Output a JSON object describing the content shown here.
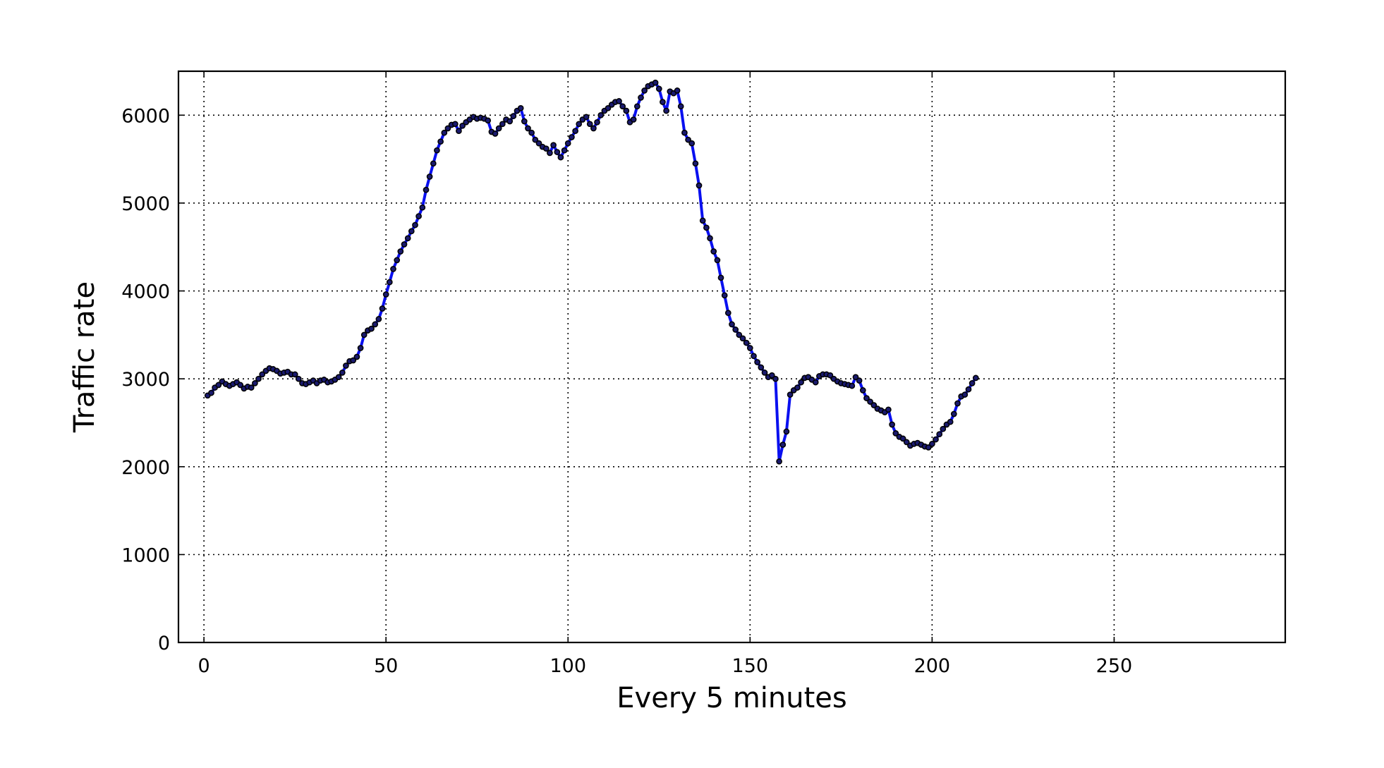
{
  "chart_data": {
    "type": "line",
    "title": "",
    "xlabel": "Every 5 minutes",
    "ylabel": "Traffic rate",
    "xlim": [
      -7,
      297
    ],
    "ylim": [
      0,
      6500
    ],
    "xticks": [
      0,
      50,
      100,
      150,
      200,
      250
    ],
    "yticks": [
      0,
      1000,
      2000,
      3000,
      4000,
      5000,
      6000
    ],
    "grid": true,
    "colors": {
      "line": "#0a10f0",
      "marker": "#1a1a6e"
    },
    "x_step": 1,
    "x_start": 1,
    "values": [
      2810,
      2840,
      2900,
      2930,
      2970,
      2940,
      2920,
      2940,
      2960,
      2930,
      2890,
      2910,
      2900,
      2950,
      3000,
      3050,
      3090,
      3120,
      3110,
      3090,
      3060,
      3070,
      3080,
      3050,
      3050,
      3000,
      2950,
      2940,
      2960,
      2980,
      2950,
      2980,
      2990,
      2960,
      2970,
      2990,
      3020,
      3070,
      3150,
      3200,
      3210,
      3250,
      3350,
      3500,
      3550,
      3570,
      3620,
      3680,
      3800,
      3960,
      4100,
      4250,
      4350,
      4450,
      4530,
      4600,
      4680,
      4750,
      4850,
      4950,
      5150,
      5300,
      5450,
      5600,
      5700,
      5800,
      5850,
      5890,
      5900,
      5820,
      5880,
      5920,
      5950,
      5980,
      5960,
      5970,
      5960,
      5940,
      5810,
      5790,
      5850,
      5900,
      5950,
      5930,
      5990,
      6050,
      6080,
      5930,
      5850,
      5800,
      5720,
      5680,
      5640,
      5620,
      5570,
      5660,
      5580,
      5520,
      5600,
      5680,
      5750,
      5820,
      5900,
      5950,
      5980,
      5900,
      5850,
      5920,
      6000,
      6050,
      6080,
      6120,
      6150,
      6160,
      6100,
      6050,
      5920,
      5950,
      6100,
      6200,
      6280,
      6330,
      6350,
      6370,
      6300,
      6150,
      6050,
      6270,
      6250,
      6280,
      6100,
      5800,
      5720,
      5680,
      5450,
      5200,
      4800,
      4720,
      4600,
      4450,
      4350,
      4150,
      3950,
      3750,
      3620,
      3560,
      3500,
      3460,
      3410,
      3350,
      3260,
      3190,
      3130,
      3070,
      3020,
      3040,
      3000,
      2060,
      2250,
      2400,
      2820,
      2870,
      2900,
      2960,
      3010,
      3020,
      2990,
      2960,
      3030,
      3050,
      3050,
      3040,
      3000,
      2970,
      2950,
      2940,
      2930,
      2920,
      3020,
      2980,
      2870,
      2780,
      2740,
      2700,
      2660,
      2640,
      2620,
      2650,
      2480,
      2380,
      2340,
      2320,
      2280,
      2240,
      2260,
      2270,
      2250,
      2230,
      2220,
      2260,
      2310,
      2370,
      2430,
      2480,
      2510,
      2600,
      2720,
      2800,
      2820,
      2880,
      2950,
      3010
    ]
  }
}
